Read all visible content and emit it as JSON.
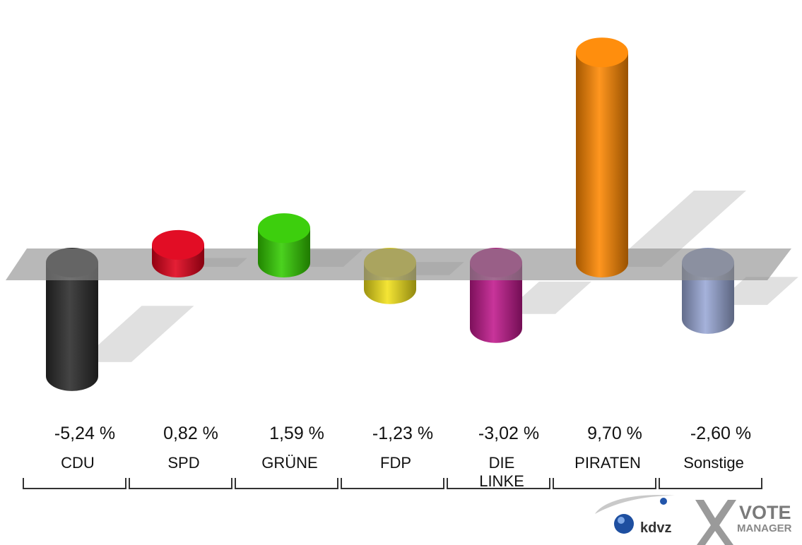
{
  "chart_data": {
    "type": "bar",
    "categories": [
      "CDU",
      "SPD",
      "GRÜNE",
      "FDP",
      "DIE LINKE",
      "PIRATEN",
      "Sonstige"
    ],
    "category_lines": [
      [
        "CDU"
      ],
      [
        "SPD"
      ],
      [
        "GRÜNE"
      ],
      [
        "FDP"
      ],
      [
        "DIE",
        "LINKE"
      ],
      [
        "PIRATEN"
      ],
      [
        "Sonstige"
      ]
    ],
    "values": [
      -5.24,
      0.82,
      1.59,
      -1.23,
      -3.02,
      9.7,
      -2.6
    ],
    "value_labels": [
      "-5,24 %",
      "0,82 %",
      "1,59 %",
      "-1,23 %",
      "-3,02 %",
      "9,70 %",
      "-2,60 %"
    ],
    "colors": [
      "#2b2b2b",
      "#e0001a",
      "#33cc00",
      "#f2e21a",
      "#c0188c",
      "#ff8800",
      "#99a8d6"
    ],
    "ylim": [
      -5.24,
      9.7
    ]
  },
  "logo": {
    "kdvz_text": "kdvz",
    "vote_text": "VOTE",
    "manager_text": "MANAGER"
  }
}
